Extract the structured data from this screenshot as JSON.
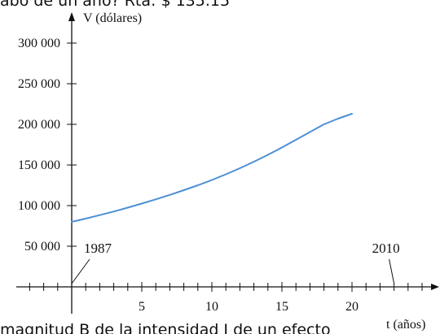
{
  "text_fragments": {
    "top": "abo de un año? Rta: $ 135.15",
    "bottom": "magnitud B de la intensidad I de un efecto"
  },
  "colors": {
    "curve": "#4d8fd6",
    "axis": "#111111",
    "background": "#ffffff"
  },
  "chart_data": {
    "type": "line",
    "title": "",
    "xlabel": "t (años)",
    "ylabel": "V (dólares)",
    "xlim": [
      -1,
      25
    ],
    "ylim": [
      0,
      325000
    ],
    "xticks": [
      5,
      10,
      15,
      20
    ],
    "xtick_labels": [
      "5",
      "10",
      "15",
      "20"
    ],
    "yticks": [
      50000,
      100000,
      150000,
      200000,
      250000,
      300000
    ],
    "ytick_labels": [
      "50 000",
      "100 000",
      "150 000",
      "200 000",
      "250 000",
      "300 000"
    ],
    "minor_xtick_step": 1,
    "annotations": [
      {
        "text": "1987",
        "x": 0
      },
      {
        "text": "2010",
        "x": 23
      }
    ],
    "series": [
      {
        "x": [
          0,
          1,
          2,
          3,
          4,
          5,
          6,
          7,
          8,
          9,
          10,
          11,
          12,
          13,
          14,
          15,
          16,
          17,
          18,
          19,
          20
        ],
        "values": [
          80000,
          84000,
          88300,
          92700,
          97500,
          102500,
          107700,
          113200,
          119000,
          125000,
          131500,
          138500,
          146000,
          154000,
          162500,
          171500,
          181000,
          190500,
          200000,
          207000,
          213000
        ]
      }
    ]
  }
}
